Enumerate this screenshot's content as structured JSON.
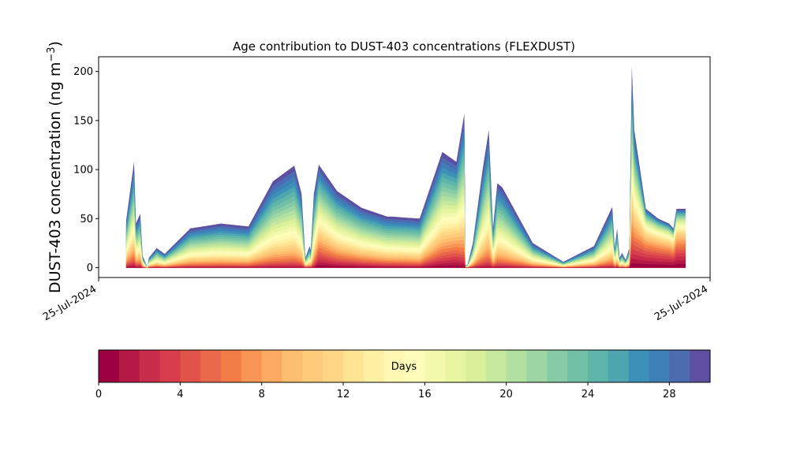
{
  "chart_data": {
    "type": "area",
    "title": "Age contribution to DUST-403 concentrations (FLEXDUST)",
    "ylabel_main": "DUST-403 concentration (ng m",
    "ylabel_sup": "−3",
    "ylabel_end": ")",
    "xlabel": "",
    "ylim": [
      -10,
      215
    ],
    "yticks": [
      0,
      50,
      100,
      150,
      200
    ],
    "xticks": [
      {
        "at": 0.0,
        "label": "25-Jul-2024"
      },
      {
        "at": 1.0,
        "label": "25-Jul-2024"
      }
    ],
    "xlim": [
      0,
      1
    ],
    "x": [
      0.045,
      0.058,
      0.061,
      0.068,
      0.072,
      0.08,
      0.082,
      0.095,
      0.108,
      0.15,
      0.2,
      0.245,
      0.285,
      0.32,
      0.332,
      0.338,
      0.341,
      0.345,
      0.347,
      0.352,
      0.36,
      0.39,
      0.43,
      0.472,
      0.48,
      0.525,
      0.562,
      0.585,
      0.598,
      0.6,
      0.603,
      0.612,
      0.628,
      0.638,
      0.645,
      0.652,
      0.66,
      0.71,
      0.76,
      0.81,
      0.84,
      0.844,
      0.848,
      0.852,
      0.856,
      0.862,
      0.868,
      0.872,
      0.876,
      0.895,
      0.915,
      0.933,
      0.94,
      0.945,
      0.96
    ],
    "total": [
      48,
      108,
      45,
      55,
      12,
      0,
      10,
      20,
      14,
      40,
      45,
      42,
      88,
      104,
      75,
      10,
      15,
      22,
      18,
      75,
      105,
      78,
      61,
      52,
      52,
      50,
      118,
      108,
      157,
      3,
      2,
      25,
      100,
      140,
      40,
      86,
      82,
      25,
      6,
      22,
      62,
      20,
      40,
      10,
      15,
      8,
      20,
      205,
      140,
      60,
      50,
      45,
      40,
      60,
      60
    ],
    "day_shares": [
      [
        0.02,
        0.02,
        0.02,
        0.02,
        0.0,
        0.0,
        0.0,
        0.0,
        0.0,
        0.0,
        0.0,
        0.0,
        0.0,
        0.0,
        0.0,
        0.0,
        0.0,
        0.0,
        0.0,
        0.0,
        0.1,
        0.07,
        0.05,
        0.03,
        0.03,
        0.02,
        0.06,
        0.1,
        0.03,
        0.0,
        0.0,
        0.0,
        0.0,
        0.0,
        0.0,
        0.0,
        0.0,
        0.0,
        0.0,
        0.0,
        0.0,
        0.0,
        0.0,
        0.0,
        0.0,
        0.0,
        0.0,
        0.09,
        0.13,
        0.28,
        0.3,
        0.3,
        0.3,
        0.3,
        0.3
      ]
    ],
    "colorbar": {
      "label": "Days",
      "min": 0,
      "max": 30,
      "ticks": [
        0,
        4,
        8,
        12,
        16,
        20,
        24,
        28
      ],
      "colors": [
        "#9e0142",
        "#b41a45",
        "#c92c4a",
        "#d73d4d",
        "#e0524a",
        "#e96a4a",
        "#f47c46",
        "#f89556",
        "#fcaa62",
        "#fdbf6f",
        "#fdcb7b",
        "#fed686",
        "#fee493",
        "#fff0a6",
        "#fff8b5",
        "#fbfdb9",
        "#f2f9ac",
        "#e7f5a0",
        "#d9ef9a",
        "#c6e89e",
        "#b2e0a0",
        "#9dd6a4",
        "#86cba6",
        "#71c0a6",
        "#5eb5aa",
        "#4da5b0",
        "#3d91b8",
        "#3f7fb8",
        "#4c6bb0",
        "#5e4fa2"
      ]
    }
  }
}
